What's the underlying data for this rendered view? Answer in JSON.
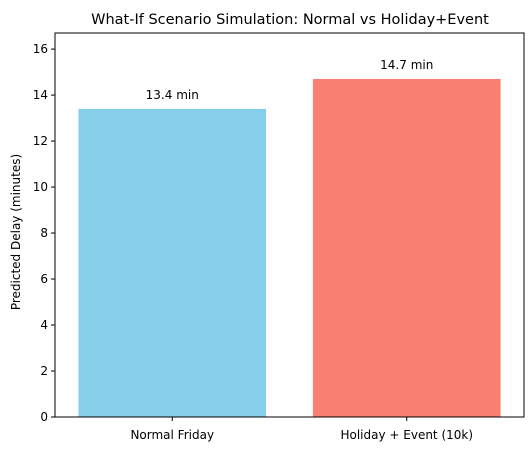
{
  "chart_data": {
    "type": "bar",
    "title": "What-If Scenario Simulation: Normal vs Holiday+Event",
    "xlabel": "",
    "ylabel": "Predicted Delay (minutes)",
    "categories": [
      "Normal Friday",
      "Holiday + Event (10k)"
    ],
    "values": [
      13.4,
      14.7
    ],
    "data_labels": [
      "13.4 min",
      "14.7 min"
    ],
    "colors": [
      "#87ceeb",
      "#fa8072"
    ],
    "ylim": [
      0,
      16.7
    ],
    "yticks": [
      0,
      2,
      4,
      6,
      8,
      10,
      12,
      14,
      16
    ],
    "grid": false,
    "legend": "none"
  }
}
